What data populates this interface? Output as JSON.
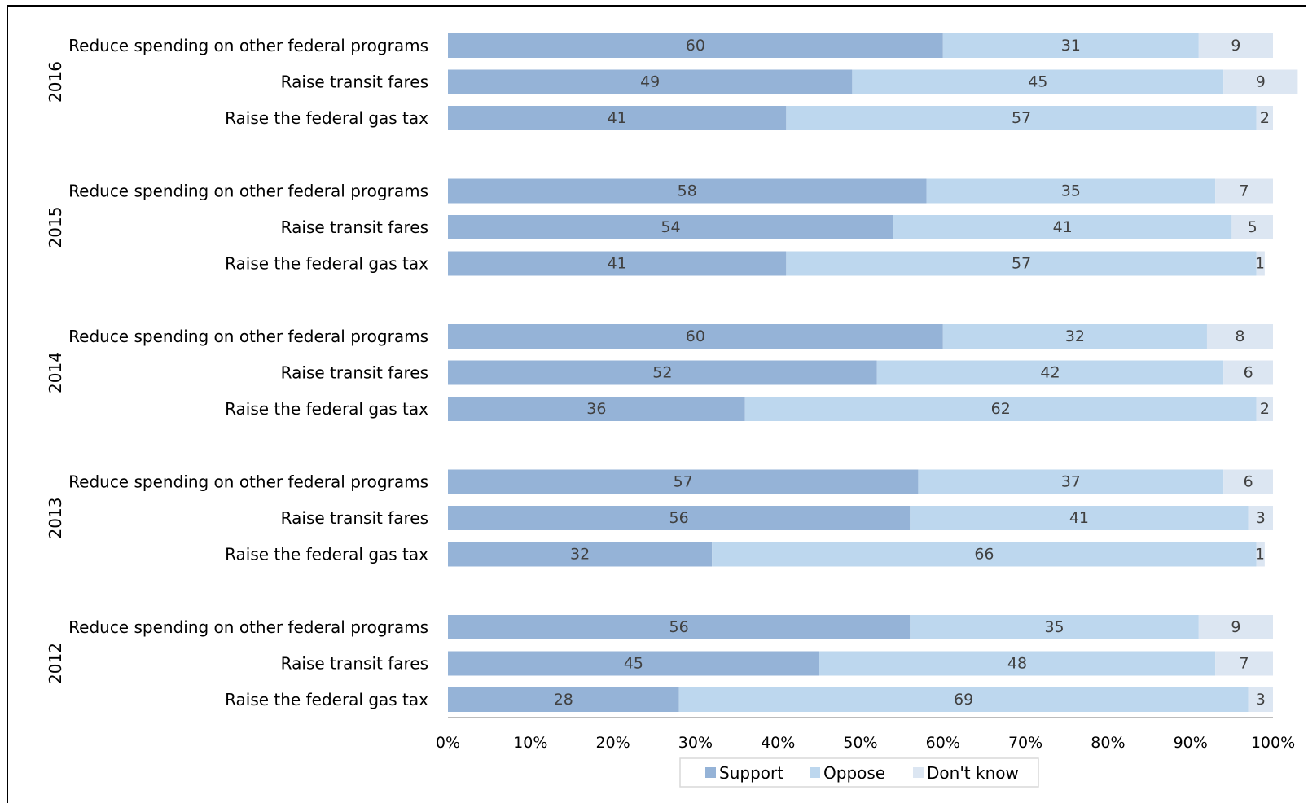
{
  "chart_data": {
    "type": "bar",
    "orientation": "horizontal",
    "stacked": true,
    "percent_stacked": true,
    "categories": [
      "Reduce spending on other federal programs",
      "Raise transit fares",
      "Raise the federal gas tax"
    ],
    "groups": [
      {
        "label": "2016",
        "rows": [
          {
            "category": "Reduce spending on other federal programs",
            "values": [
              60,
              31,
              9
            ]
          },
          {
            "category": "Raise transit fares",
            "values": [
              49,
              45,
              9
            ]
          },
          {
            "category": "Raise the federal gas tax",
            "values": [
              41,
              57,
              2
            ]
          }
        ]
      },
      {
        "label": "2015",
        "rows": [
          {
            "category": "Reduce spending on other federal programs",
            "values": [
              58,
              35,
              7
            ]
          },
          {
            "category": "Raise transit fares",
            "values": [
              54,
              41,
              5
            ]
          },
          {
            "category": "Raise the federal gas tax",
            "values": [
              41,
              57,
              1
            ]
          }
        ]
      },
      {
        "label": "2014",
        "rows": [
          {
            "category": "Reduce spending on other federal programs",
            "values": [
              60,
              32,
              8
            ]
          },
          {
            "category": "Raise transit fares",
            "values": [
              52,
              42,
              6
            ]
          },
          {
            "category": "Raise the federal gas tax",
            "values": [
              36,
              62,
              2
            ]
          }
        ]
      },
      {
        "label": "2013",
        "rows": [
          {
            "category": "Reduce spending on other federal programs",
            "values": [
              57,
              37,
              6
            ]
          },
          {
            "category": "Raise transit fares",
            "values": [
              56,
              41,
              3
            ]
          },
          {
            "category": "Raise the federal gas tax",
            "values": [
              32,
              66,
              1
            ]
          }
        ]
      },
      {
        "label": "2012",
        "rows": [
          {
            "category": "Reduce spending on other federal programs",
            "values": [
              56,
              35,
              9
            ]
          },
          {
            "category": "Raise transit fares",
            "values": [
              45,
              48,
              7
            ]
          },
          {
            "category": "Raise the federal gas tax",
            "values": [
              28,
              69,
              3
            ]
          }
        ]
      }
    ],
    "series": [
      {
        "name": "Support",
        "color": "#95b3d7"
      },
      {
        "name": "Oppose",
        "color": "#bdd7ee"
      },
      {
        "name": "Don't know",
        "color": "#dce6f2"
      }
    ],
    "x_ticks": [
      "0%",
      "10%",
      "20%",
      "30%",
      "40%",
      "50%",
      "60%",
      "70%",
      "80%",
      "90%",
      "100%"
    ],
    "xlim": [
      0,
      100
    ],
    "grid": false,
    "legend_position": "bottom"
  }
}
